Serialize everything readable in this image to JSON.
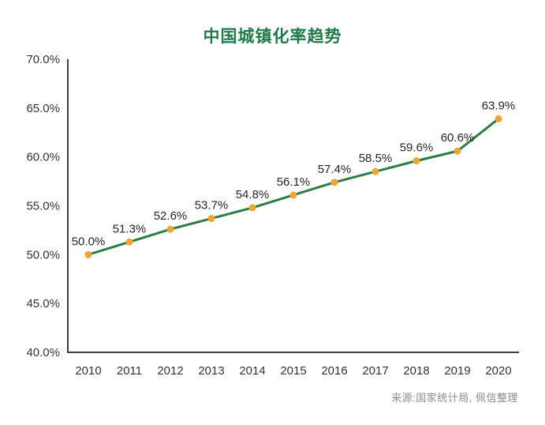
{
  "footer": {
    "source": "来源:国家统计局, 佩信整理"
  },
  "colors": {
    "title_text": "#1f7a47",
    "line": "#2b7d46",
    "marker": "#f0a432",
    "axis": "#404040",
    "tick_text": "#333333",
    "data_label_text": "#262626",
    "source_text": "#8c8c8c",
    "background": "#ffffff"
  },
  "chart_data": {
    "type": "line",
    "title": "中国城镇化率趋势",
    "categories": [
      "2010",
      "2011",
      "2012",
      "2013",
      "2014",
      "2015",
      "2016",
      "2017",
      "2018",
      "2019",
      "2020"
    ],
    "series": [
      {
        "values": [
          50.0,
          51.3,
          52.6,
          53.7,
          54.8,
          56.1,
          57.4,
          58.5,
          59.6,
          60.6,
          63.9
        ]
      }
    ],
    "data_labels": [
      "50.0%",
      "51.3%",
      "52.6%",
      "53.7%",
      "54.8%",
      "56.1%",
      "57.4%",
      "58.5%",
      "59.6%",
      "60.6%",
      "63.9%"
    ],
    "ytick_values": [
      40,
      45,
      50,
      55,
      60,
      65,
      70
    ],
    "ytick_labels": [
      "40.0%",
      "45.0%",
      "50.0%",
      "55.0%",
      "60.0%",
      "65.0%",
      "70.0%"
    ],
    "ylim": [
      40,
      70
    ],
    "xlabel": "",
    "ylabel": "",
    "grid": false,
    "legend": "none",
    "marker_style": "circle"
  }
}
